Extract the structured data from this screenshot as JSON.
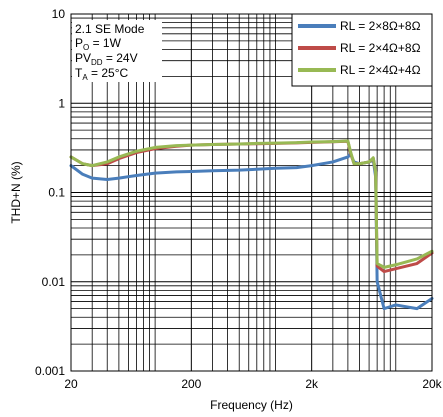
{
  "chart_data": {
    "type": "line",
    "title": "",
    "xlabel": "Frequency (Hz)",
    "ylabel": "THD+N (%)",
    "x_scale": "log",
    "y_scale": "log",
    "xlim": [
      20,
      20000
    ],
    "ylim": [
      0.001,
      10
    ],
    "grid": true,
    "legend_position": "top-right",
    "x_ticks": [
      {
        "value": 20,
        "label": "20"
      },
      {
        "value": 200,
        "label": "200"
      },
      {
        "value": 2000,
        "label": "2k"
      },
      {
        "value": 20000,
        "label": "20k"
      }
    ],
    "y_ticks": [
      {
        "value": 10,
        "label": "10"
      },
      {
        "value": 1,
        "label": "1"
      },
      {
        "value": 0.1,
        "label": "0.1"
      },
      {
        "value": 0.01,
        "label": "0.01"
      },
      {
        "value": 0.001,
        "label": "0.001"
      }
    ],
    "annotation": {
      "line1": "2.1 SE Mode",
      "line2_main": "P",
      "line2_sub": "O",
      "line2_rest": " = 1W",
      "line3_main": "PV",
      "line3_sub": "DD",
      "line3_rest": " = 24V",
      "line4_main": "T",
      "line4_sub": "A",
      "line4_rest": " = 25°C"
    },
    "series": [
      {
        "name": "RL = 2×8Ω+8Ω",
        "color": "#4a7ebb",
        "x": [
          20,
          25,
          30,
          40,
          50,
          70,
          100,
          150,
          200,
          300,
          500,
          700,
          1000,
          1500,
          2000,
          3000,
          4000,
          4200,
          4500,
          5000,
          6000,
          6500,
          6800,
          7000,
          8000,
          10000,
          15000,
          20000
        ],
        "y": [
          0.2,
          0.16,
          0.145,
          0.14,
          0.145,
          0.155,
          0.165,
          0.17,
          0.172,
          0.175,
          0.178,
          0.182,
          0.187,
          0.19,
          0.2,
          0.22,
          0.25,
          0.27,
          0.22,
          0.21,
          0.22,
          0.23,
          0.15,
          0.01,
          0.005,
          0.0055,
          0.005,
          0.0065
        ]
      },
      {
        "name": "RL = 2×4Ω+8Ω",
        "color": "#be4b48",
        "x": [
          20,
          25,
          30,
          40,
          50,
          70,
          100,
          150,
          200,
          300,
          500,
          700,
          1000,
          1500,
          2000,
          3000,
          4000,
          4200,
          4500,
          5000,
          6000,
          6500,
          6800,
          7000,
          8000,
          10000,
          15000,
          20000
        ],
        "y": [
          0.25,
          0.21,
          0.2,
          0.21,
          0.24,
          0.28,
          0.31,
          0.33,
          0.34,
          0.345,
          0.35,
          0.352,
          0.355,
          0.36,
          0.365,
          0.37,
          0.375,
          0.28,
          0.21,
          0.21,
          0.22,
          0.24,
          0.17,
          0.015,
          0.013,
          0.014,
          0.016,
          0.021
        ]
      },
      {
        "name": "RL = 2×4Ω+4Ω",
        "color": "#98b954",
        "x": [
          20,
          25,
          30,
          40,
          50,
          70,
          100,
          150,
          200,
          300,
          500,
          700,
          1000,
          1500,
          2000,
          3000,
          4000,
          4200,
          4500,
          5000,
          6000,
          6500,
          6800,
          7000,
          8000,
          10000,
          15000,
          20000
        ],
        "y": [
          0.25,
          0.21,
          0.2,
          0.22,
          0.25,
          0.29,
          0.32,
          0.335,
          0.34,
          0.345,
          0.35,
          0.355,
          0.358,
          0.362,
          0.368,
          0.372,
          0.378,
          0.29,
          0.21,
          0.21,
          0.22,
          0.245,
          0.17,
          0.016,
          0.0145,
          0.0155,
          0.018,
          0.022
        ]
      }
    ]
  }
}
